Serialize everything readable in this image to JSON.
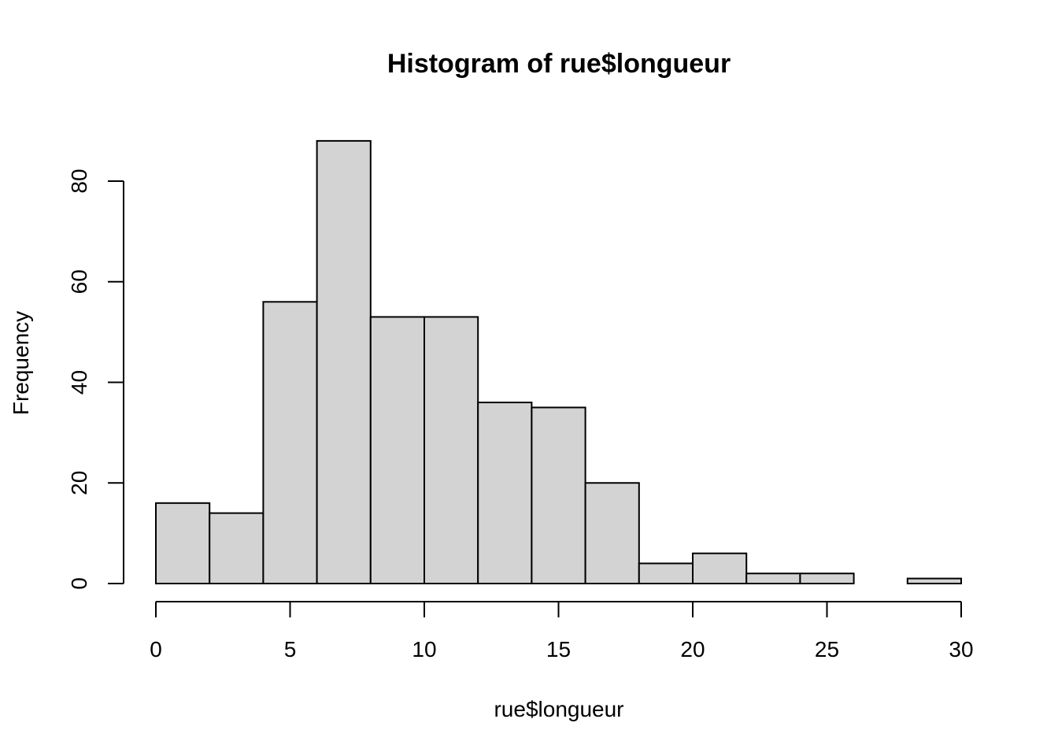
{
  "chart_data": {
    "type": "bar",
    "title": "Histogram of rue$longueur",
    "xlabel": "rue$longueur",
    "ylabel": "Frequency",
    "bin_edges": [
      0,
      2,
      4,
      6,
      8,
      10,
      12,
      14,
      16,
      18,
      20,
      22,
      24,
      26,
      28,
      30
    ],
    "values": [
      16,
      14,
      56,
      88,
      53,
      53,
      36,
      35,
      20,
      4,
      6,
      2,
      2,
      0,
      1
    ],
    "xlim": [
      0,
      30
    ],
    "ylim": [
      0,
      88
    ],
    "x_ticks": [
      0,
      5,
      10,
      15,
      20,
      25,
      30
    ],
    "y_ticks": [
      0,
      20,
      40,
      60,
      80
    ],
    "grid": false,
    "colors": {
      "bar_fill": "#d3d3d3",
      "bar_stroke": "#000000"
    }
  }
}
